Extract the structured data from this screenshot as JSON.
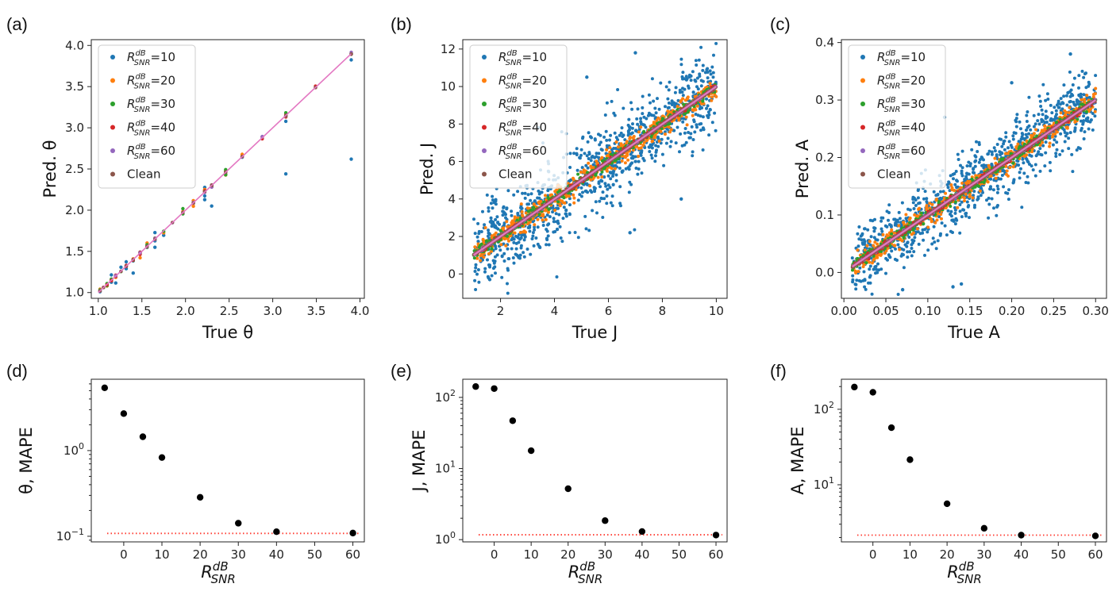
{
  "figure": {
    "panel_labels": [
      "(a)",
      "(b)",
      "(c)",
      "(d)",
      "(e)",
      "(f)"
    ],
    "colors": {
      "snr10": "#1f77b4",
      "snr20": "#ff7f0e",
      "snr30": "#2ca02c",
      "snr40": "#d62728",
      "snr60": "#9467bd",
      "clean": "#8c564b",
      "identity_line": "#e377c2",
      "reference_line": "#ff3b30",
      "mape_points": "#000000"
    }
  },
  "chart_data": [
    {
      "type": "scatter",
      "panel": "(a)",
      "xlabel": "True θ",
      "ylabel": "Pred. θ",
      "xlim": [
        0.92,
        4.05
      ],
      "ylim": [
        0.93,
        4.07
      ],
      "xticks": [
        1.0,
        1.5,
        2.0,
        2.5,
        3.0,
        3.5,
        4.0
      ],
      "xtick_labels": [
        "1.0",
        "1.5",
        "2.0",
        "2.5",
        "3.0",
        "3.5",
        "4.0"
      ],
      "yticks": [
        1.0,
        1.5,
        2.0,
        2.5,
        3.0,
        3.5,
        4.0
      ],
      "ytick_labels": [
        "1.0",
        "1.5",
        "2.0",
        "2.5",
        "3.0",
        "3.5",
        "4.0"
      ],
      "identity_line": [
        1.0,
        3.9
      ],
      "legend": {
        "position": "top-left",
        "entries": [
          {
            "base": "R",
            "sup": "dB",
            "sub": "SNR",
            "value": "=10"
          },
          {
            "base": "R",
            "sup": "dB",
            "sub": "SNR",
            "value": "=20"
          },
          {
            "base": "R",
            "sup": "dB",
            "sub": "SNR",
            "value": "=30"
          },
          {
            "base": "R",
            "sup": "dB",
            "sub": "SNR",
            "value": "=40"
          },
          {
            "base": "R",
            "sup": "dB",
            "sub": "SNR",
            "value": "=60"
          },
          {
            "text": "Clean"
          }
        ]
      },
      "x_distribution": "discrete",
      "x_values": [
        1.02,
        1.06,
        1.1,
        1.15,
        1.2,
        1.26,
        1.32,
        1.4,
        1.48,
        1.56,
        1.65,
        1.75,
        1.85,
        1.97,
        2.09,
        2.22,
        2.3,
        2.46,
        2.65,
        2.88,
        3.15,
        3.49,
        3.9
      ],
      "noise_sd": [
        0.06,
        0.03,
        0.015,
        0.008,
        0.004,
        0.002
      ],
      "outliers": [
        {
          "x": 3.9,
          "y": 2.62
        },
        {
          "x": 3.15,
          "y": 2.44
        },
        {
          "x": 2.3,
          "y": 2.05
        }
      ]
    },
    {
      "type": "scatter",
      "panel": "(b)",
      "xlabel": "True J",
      "ylabel": "Pred. J",
      "xlim": [
        0.6,
        10.4
      ],
      "ylim": [
        -1.3,
        12.5
      ],
      "xticks": [
        2,
        4,
        6,
        8,
        10
      ],
      "xtick_labels": [
        "2",
        "4",
        "6",
        "8",
        "10"
      ],
      "yticks": [
        0,
        2,
        4,
        6,
        8,
        10,
        12
      ],
      "ytick_labels": [
        "0",
        "2",
        "4",
        "6",
        "8",
        "10",
        "12"
      ],
      "identity_line": [
        1.0,
        10.0
      ],
      "legend": {
        "position": "top-left",
        "entries": [
          {
            "base": "R",
            "sup": "dB",
            "sub": "SNR",
            "value": "=10"
          },
          {
            "base": "R",
            "sup": "dB",
            "sub": "SNR",
            "value": "=20"
          },
          {
            "base": "R",
            "sup": "dB",
            "sub": "SNR",
            "value": "=30"
          },
          {
            "base": "R",
            "sup": "dB",
            "sub": "SNR",
            "value": "=40"
          },
          {
            "base": "R",
            "sup": "dB",
            "sub": "SNR",
            "value": "=60"
          },
          {
            "text": "Clean"
          }
        ]
      },
      "x_distribution": "uniform",
      "x_range": [
        1.0,
        10.0
      ],
      "noise_sd": [
        1.1,
        0.3,
        0.12,
        0.05,
        0.03,
        0.02
      ],
      "outliers": [
        {
          "x": 5.2,
          "y": 10.5
        },
        {
          "x": 3.4,
          "y": 7.8
        },
        {
          "x": 6.8,
          "y": 2.2
        },
        {
          "x": 8.7,
          "y": 4.0
        },
        {
          "x": 1.6,
          "y": -0.3
        },
        {
          "x": 7.0,
          "y": 11.8
        }
      ]
    },
    {
      "type": "scatter",
      "panel": "(c)",
      "xlabel": "True A",
      "ylabel": "Pred. A",
      "xlim": [
        -0.003,
        0.313
      ],
      "ylim": [
        -0.045,
        0.405
      ],
      "xticks": [
        0.0,
        0.05,
        0.1,
        0.15,
        0.2,
        0.25,
        0.3
      ],
      "xtick_labels": [
        "0.00",
        "0.05",
        "0.10",
        "0.15",
        "0.20",
        "0.25",
        "0.30"
      ],
      "yticks": [
        0.0,
        0.1,
        0.2,
        0.3,
        0.4
      ],
      "ytick_labels": [
        "0.0",
        "0.1",
        "0.2",
        "0.3",
        "0.4"
      ],
      "identity_line": [
        0.01,
        0.3
      ],
      "legend": {
        "position": "top-left",
        "entries": [
          {
            "base": "R",
            "sup": "dB",
            "sub": "SNR",
            "value": "=10"
          },
          {
            "base": "R",
            "sup": "dB",
            "sub": "SNR",
            "value": "=20"
          },
          {
            "base": "R",
            "sup": "dB",
            "sub": "SNR",
            "value": "=30"
          },
          {
            "base": "R",
            "sup": "dB",
            "sub": "SNR",
            "value": "=40"
          },
          {
            "base": "R",
            "sup": "dB",
            "sub": "SNR",
            "value": "=60"
          },
          {
            "text": "Clean"
          }
        ]
      },
      "x_distribution": "uniform",
      "x_range": [
        0.01,
        0.3
      ],
      "noise_sd": [
        0.03,
        0.009,
        0.004,
        0.002,
        0.001,
        0.0008
      ],
      "outliers": [
        {
          "x": 0.07,
          "y": -0.03
        },
        {
          "x": 0.13,
          "y": -0.025
        },
        {
          "x": 0.14,
          "y": -0.02
        },
        {
          "x": 0.27,
          "y": 0.38
        },
        {
          "x": 0.12,
          "y": 0.27
        },
        {
          "x": 0.2,
          "y": 0.33
        }
      ]
    },
    {
      "type": "scatter",
      "panel": "(d)",
      "xlabel": {
        "base": "R",
        "sup": "dB",
        "sub": "SNR"
      },
      "ylabel": "θ, MAPE",
      "yscale": "log",
      "xlim": [
        -8.5,
        63
      ],
      "ylim": [
        0.086,
        6.8
      ],
      "xticks": [
        0,
        10,
        20,
        30,
        40,
        50,
        60
      ],
      "xtick_labels": [
        "0",
        "10",
        "20",
        "30",
        "40",
        "50",
        "60"
      ],
      "yticks": [
        0.1,
        1
      ],
      "ytick_labels": [
        {
          "base": "10",
          "exp": "−1"
        },
        {
          "base": "10",
          "exp": "0"
        }
      ],
      "x": [
        -5,
        0,
        5,
        10,
        20,
        30,
        40,
        60
      ],
      "y": [
        5.4,
        2.7,
        1.45,
        0.83,
        0.285,
        0.142,
        0.113,
        0.109
      ],
      "reference_y": 0.108
    },
    {
      "type": "scatter",
      "panel": "(e)",
      "xlabel": {
        "base": "R",
        "sup": "dB",
        "sub": "SNR"
      },
      "ylabel": "J, MAPE",
      "yscale": "log",
      "xlim": [
        -8.5,
        63
      ],
      "ylim": [
        0.93,
        180
      ],
      "xticks": [
        0,
        10,
        20,
        30,
        40,
        50,
        60
      ],
      "xtick_labels": [
        "0",
        "10",
        "20",
        "30",
        "40",
        "50",
        "60"
      ],
      "yticks": [
        1,
        10,
        100
      ],
      "ytick_labels": [
        {
          "base": "10",
          "exp": "0"
        },
        {
          "base": "10",
          "exp": "1"
        },
        {
          "base": "10",
          "exp": "2"
        }
      ],
      "x": [
        -5,
        0,
        5,
        10,
        20,
        30,
        40,
        60
      ],
      "y": [
        142,
        133,
        47,
        17.8,
        5.2,
        1.85,
        1.3,
        1.16
      ],
      "reference_y": 1.17
    },
    {
      "type": "scatter",
      "panel": "(f)",
      "xlabel": {
        "base": "R",
        "sup": "dB",
        "sub": "SNR"
      },
      "ylabel": "A, MAPE",
      "yscale": "log",
      "xlim": [
        -8.5,
        63
      ],
      "ylim": [
        1.75,
        250
      ],
      "xticks": [
        0,
        10,
        20,
        30,
        40,
        50,
        60
      ],
      "xtick_labels": [
        "0",
        "10",
        "20",
        "30",
        "40",
        "50",
        "60"
      ],
      "yticks": [
        10,
        100
      ],
      "ytick_labels": [
        {
          "base": "10",
          "exp": "1"
        },
        {
          "base": "10",
          "exp": "2"
        }
      ],
      "x": [
        -5,
        0,
        5,
        10,
        20,
        30,
        40,
        60
      ],
      "y": [
        197,
        168,
        57,
        21.5,
        5.6,
        2.65,
        2.15,
        2.1
      ],
      "reference_y": 2.15
    }
  ]
}
